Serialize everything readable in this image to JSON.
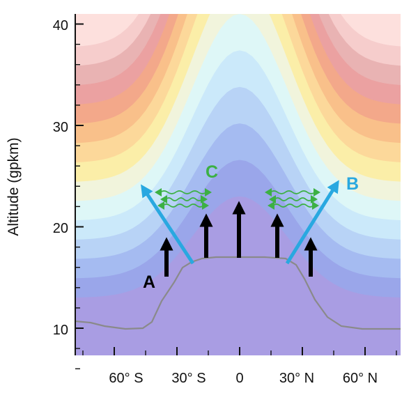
{
  "chart_data": {
    "type": "diagram",
    "ylabel": "Altitude (gpkm)",
    "ylim": [
      5,
      41
    ],
    "y_ticks": [
      "10",
      "20",
      "30",
      "40"
    ],
    "x_ticks": [
      "60° S",
      "30° S",
      "0",
      "30° N",
      "60° N"
    ],
    "labels": {
      "a": "A",
      "b": "B",
      "c": "C"
    },
    "colors": {
      "label_a": "#000000",
      "label_b": "#29a8e0",
      "label_c": "#3cb043",
      "blue_arrows": "#29a8e0",
      "black_arrows": "#000000",
      "green_arrows": "#3cb043",
      "tropopause_fill": "#a99de3",
      "tropopause_line": "#8a8a8a",
      "band_palette": [
        "#a99de3",
        "#9aa6ea",
        "#a5bbf1",
        "#b8d3f6",
        "#cbe9fa",
        "#def7f7",
        "#f1f4dc",
        "#fbeea8",
        "#fcd89a",
        "#f9c08a",
        "#f3a88a",
        "#eba1a1",
        "#e9b3b3",
        "#f6cdcc",
        "#fde0dd"
      ]
    }
  }
}
